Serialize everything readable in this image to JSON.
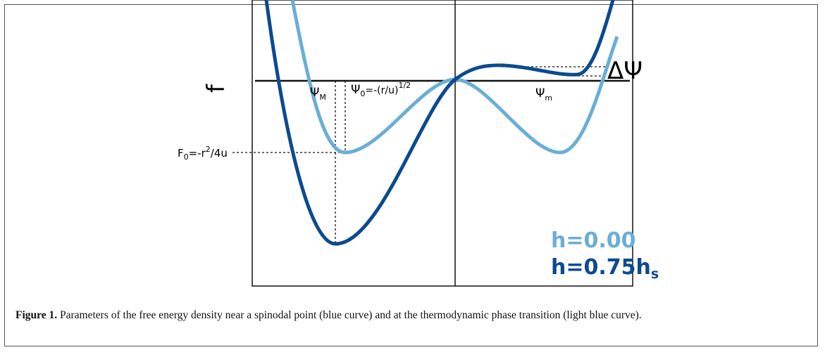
{
  "figure": {
    "axis_label": "f",
    "psi_M": [
      "Ψ",
      "M"
    ],
    "psi_0": [
      "Ψ",
      "0",
      "=-(r/u)",
      "1/2"
    ],
    "psi_m": [
      "Ψ",
      "m"
    ],
    "delta_psi": "ΔΨ",
    "f_0": [
      "F",
      "0",
      "=-r",
      "2",
      "/4u"
    ],
    "legend": {
      "light": "h=0.00",
      "dark": [
        "h=0.75h",
        "s"
      ]
    },
    "caption": {
      "label": "Figure 1.",
      "text": " Parameters of the free energy density near a spinodal point (blue curve) and at the thermodynamic phase transition (light blue curve)."
    }
  }
}
